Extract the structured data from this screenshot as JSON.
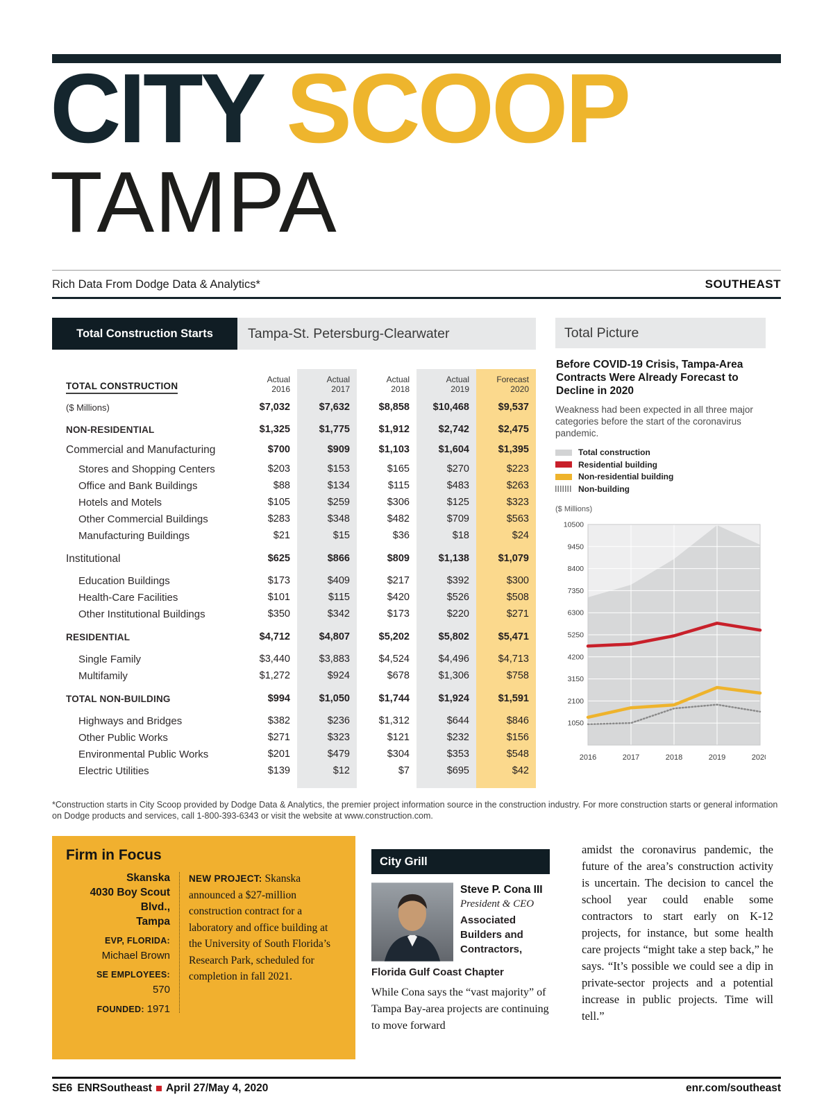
{
  "header": {
    "title_city": "CITY",
    "title_scoop": "SCOOP",
    "subtitle": "TAMPA",
    "tagline": "Rich Data From Dodge Data & Analytics*",
    "region": "SOUTHEAST"
  },
  "table": {
    "box_title": "Total Construction Starts",
    "metro": "Tampa-St. Petersburg-Clearwater",
    "row_header": "TOTAL CONSTRUCTION",
    "col_headers": [
      {
        "line1": "Actual",
        "line2": "2016"
      },
      {
        "line1": "Actual",
        "line2": "2017"
      },
      {
        "line1": "Actual",
        "line2": "2018"
      },
      {
        "line1": "Actual",
        "line2": "2019"
      },
      {
        "line1": "Forecast",
        "line2": "2020"
      }
    ],
    "rows": [
      {
        "label": "($ Millions)",
        "level": "total",
        "values": [
          "$7,032",
          "$7,632",
          "$8,858",
          "$10,468",
          "$9,537"
        ]
      },
      {
        "label": "NON-RESIDENTIAL",
        "level": "major",
        "gap": "lg",
        "values": [
          "$1,325",
          "$1,775",
          "$1,912",
          "$2,742",
          "$2,475"
        ]
      },
      {
        "label": "Commercial and Manufacturing",
        "level": "group",
        "gap": "sm",
        "values": [
          "$700",
          "$909",
          "$1,103",
          "$1,604",
          "$1,395"
        ]
      },
      {
        "label": "Stores and Shopping Centers",
        "level": "item",
        "gap": "sm",
        "values": [
          "$203",
          "$153",
          "$165",
          "$270",
          "$223"
        ]
      },
      {
        "label": "Office and Bank Buildings",
        "level": "item",
        "values": [
          "$88",
          "$134",
          "$115",
          "$483",
          "$263"
        ]
      },
      {
        "label": "Hotels and Motels",
        "level": "item",
        "values": [
          "$105",
          "$259",
          "$306",
          "$125",
          "$323"
        ]
      },
      {
        "label": "Other Commercial Buildings",
        "level": "item",
        "values": [
          "$283",
          "$348",
          "$482",
          "$709",
          "$563"
        ]
      },
      {
        "label": "Manufacturing Buildings",
        "level": "item",
        "values": [
          "$21",
          "$15",
          "$36",
          "$18",
          "$24"
        ]
      },
      {
        "label": "Institutional",
        "level": "group",
        "gap": "lg",
        "values": [
          "$625",
          "$866",
          "$809",
          "$1,138",
          "$1,079"
        ]
      },
      {
        "label": "Education Buildings",
        "level": "item",
        "gap": "lg",
        "values": [
          "$173",
          "$409",
          "$217",
          "$392",
          "$300"
        ]
      },
      {
        "label": "Health-Care Facilities",
        "level": "item",
        "values": [
          "$101",
          "$115",
          "$420",
          "$526",
          "$508"
        ]
      },
      {
        "label": "Other Institutional Buildings",
        "level": "item",
        "values": [
          "$350",
          "$342",
          "$173",
          "$220",
          "$271"
        ]
      },
      {
        "label": "RESIDENTIAL",
        "level": "major",
        "gap": "lg",
        "values": [
          "$4,712",
          "$4,807",
          "$5,202",
          "$5,802",
          "$5,471"
        ]
      },
      {
        "label": "Single Family",
        "level": "item",
        "gap": "lg",
        "values": [
          "$3,440",
          "$3,883",
          "$4,524",
          "$4,496",
          "$4,713"
        ]
      },
      {
        "label": "Multifamily",
        "level": "item",
        "values": [
          "$1,272",
          "$924",
          "$678",
          "$1,306",
          "$758"
        ]
      },
      {
        "label": "TOTAL NON-BUILDING",
        "level": "major",
        "gap": "lg",
        "values": [
          "$994",
          "$1,050",
          "$1,744",
          "$1,924",
          "$1,591"
        ]
      },
      {
        "label": "Highways and Bridges",
        "level": "item",
        "gap": "lg",
        "values": [
          "$382",
          "$236",
          "$1,312",
          "$644",
          "$846"
        ]
      },
      {
        "label": "Other Public Works",
        "level": "item",
        "values": [
          "$271",
          "$323",
          "$121",
          "$232",
          "$156"
        ]
      },
      {
        "label": "Environmental Public Works",
        "level": "item",
        "values": [
          "$201",
          "$479",
          "$304",
          "$353",
          "$548"
        ]
      },
      {
        "label": "Electric Utilities",
        "level": "item",
        "values": [
          "$139",
          "$12",
          "$7",
          "$695",
          "$42"
        ]
      }
    ],
    "highlight_colors": {
      "actual_band": "#e7e8e9",
      "forecast_band": "#fbd98d"
    }
  },
  "sidebar": {
    "header": "Total Picture",
    "title": "Before COVID-19 Crisis, Tampa-Area Contracts Were Already Forecast to Decline in 2020",
    "body": "Weakness had been expected in all three major categories before the start of the coronavirus pandemic.",
    "legend": [
      {
        "label": "Total construction",
        "color": "#d2d3d4"
      },
      {
        "label": "Residential building",
        "color": "#c8202a"
      },
      {
        "label": "Non-residential building",
        "color": "#eeb32c"
      },
      {
        "label": "Non-building",
        "color": "#777777",
        "hatch": true
      }
    ],
    "units": "($ Millions)"
  },
  "chart_data": {
    "type": "line",
    "title": "Total Picture",
    "x": [
      2016,
      2017,
      2018,
      2019,
      2020
    ],
    "series": [
      {
        "name": "Total construction",
        "values": [
          7032,
          7632,
          8858,
          10468,
          9537
        ],
        "color": "#d7d8d9",
        "style": "area"
      },
      {
        "name": "Residential building",
        "values": [
          4712,
          4807,
          5202,
          5802,
          5471
        ],
        "color": "#c8202a",
        "style": "line"
      },
      {
        "name": "Non-residential building",
        "values": [
          1325,
          1775,
          1912,
          2742,
          2475
        ],
        "color": "#eeb32c",
        "style": "line"
      },
      {
        "name": "Non-building",
        "values": [
          994,
          1050,
          1744,
          1924,
          1591
        ],
        "color": "#8a8a8a",
        "style": "dotted"
      }
    ],
    "xlabel": "",
    "ylabel": "($ Millions)",
    "ylim": [
      0,
      10500
    ],
    "yticks": [
      1050,
      2100,
      3150,
      4200,
      5250,
      6300,
      7350,
      8400,
      9450,
      10500
    ],
    "grid": true,
    "legend_position": "above-chart"
  },
  "footnote": "*Construction starts in City Scoop provided by Dodge Data & Analytics, the premier project information source in the construction industry. For more construction starts or general information on Dodge products and services, call 1-800-393-6343 or visit the website at www.construction.com.",
  "firm": {
    "heading": "Firm in Focus",
    "facts": [
      {
        "text": "Skanska",
        "style": "bold"
      },
      {
        "text": "4030 Boy Scout",
        "style": "bold"
      },
      {
        "text": "Blvd.,",
        "style": "bold"
      },
      {
        "text": "Tampa",
        "style": "bold"
      },
      {
        "text": "EVP, FLORIDA:",
        "style": "caps",
        "pad": true
      },
      {
        "text": "Michael Brown",
        "style": "plain"
      },
      {
        "text": "SE EMPLOYEES:",
        "style": "caps",
        "pad": true
      },
      {
        "text": "570",
        "style": "plain"
      },
      {
        "text": "1971",
        "label": "FOUNDED:",
        "style": "plain",
        "pad": true
      }
    ],
    "new_project_label": "NEW PROJECT:",
    "new_project_text": " Skanska announced a $27-million construction contract for a laboratory and office building at the University of South Florida’s Research Park, scheduled for completion in fall 2021."
  },
  "grill": {
    "heading": "City Grill",
    "name": "Steve P. Cona III",
    "title": "President & CEO",
    "org": "Associated Builders and Contractors,",
    "chapter": "Florida Gulf Coast Chapter",
    "paragraph": "While Cona says the “vast majority” of Tampa Bay-area projects are continuing to move forward"
  },
  "column_text": "amidst the coronavirus pandemic, the future of the area’s construction activity is uncertain. The decision to cancel the school year could enable some contractors to start early on K-12 projects, for instance, but some health care projects “might take a step back,” he says. “It’s possible we could see a dip in private-sector projects and a potential increase in public projects. Time will tell.”",
  "footer": {
    "page": "SE6",
    "brand": "ENR",
    "brand2": "Southeast",
    "date": "April 27/May 4, 2020",
    "url": "enr.com/southeast",
    "bullet_color": "#cc2127"
  }
}
